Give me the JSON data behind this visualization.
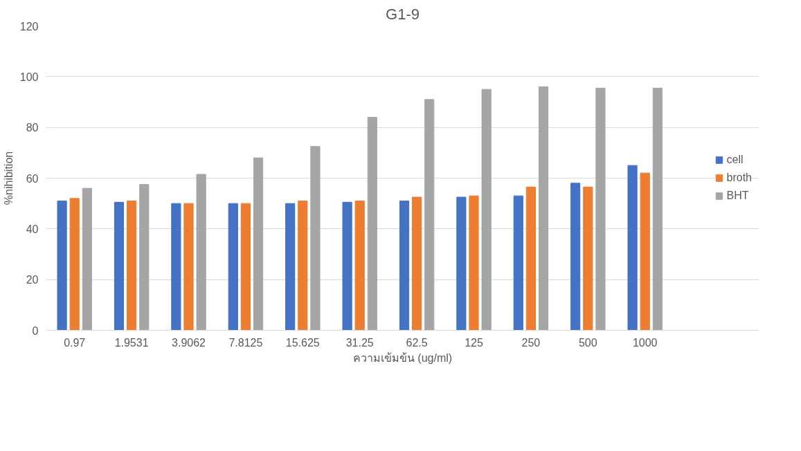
{
  "chart_data": {
    "type": "bar",
    "title": "G1-9",
    "xlabel": "ความเข้มข้น (ug/ml)",
    "ylabel": "%nihibition",
    "categories": [
      "0.97",
      "1.9531",
      "3.9062",
      "7.8125",
      "15.625",
      "31.25",
      "62.5",
      "125",
      "250",
      "500",
      "1000"
    ],
    "series": [
      {
        "name": "cell",
        "color": "#4472c4",
        "values": [
          51,
          50.5,
          50,
          50,
          50,
          50.5,
          51,
          52.5,
          53,
          58,
          65
        ]
      },
      {
        "name": "broth",
        "color": "#ed7d31",
        "values": [
          52,
          51,
          50,
          50,
          51,
          51,
          52.5,
          53,
          56.5,
          56.5,
          62
        ]
      },
      {
        "name": "BHT",
        "color": "#a5a5a5",
        "values": [
          56,
          57.5,
          61.5,
          68,
          72.5,
          84,
          91,
          95,
          96,
          95.5,
          95.5
        ]
      }
    ],
    "ylim": [
      0,
      120
    ],
    "yticks": [
      0,
      20,
      40,
      60,
      80,
      100,
      120
    ],
    "grid": "y",
    "legend": "right"
  }
}
